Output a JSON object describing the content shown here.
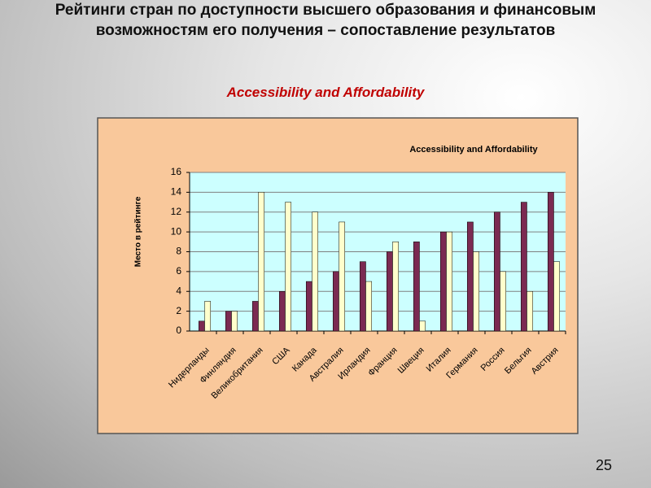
{
  "slide": {
    "title": "Рейтинги стран по доступности высшего образования и финансовым возможностям его получения – сопоставление результатов",
    "subtitle": "Accessibility and Affordability",
    "page_number": "25"
  },
  "chart_data": {
    "type": "bar",
    "title": "Accessibility and Affordability",
    "y_label": "Место в рейтинге",
    "categories": [
      "Нидерланды",
      "Финляндия",
      "Великобритания",
      "США",
      "Канада",
      "Австралия",
      "Ирландия",
      "Франция",
      "Швеция",
      "Италия",
      "Германия",
      "Россия",
      "Бельгия",
      "Австрия"
    ],
    "series": [
      {
        "color": "#7b2a52",
        "values": [
          1,
          2,
          3,
          4,
          5,
          6,
          7,
          8,
          9,
          10,
          11,
          12,
          13,
          14
        ]
      },
      {
        "color": "#ffffcc",
        "values": [
          3,
          2,
          14,
          13,
          12,
          11,
          5,
          9,
          1,
          10,
          8,
          6,
          4,
          7
        ]
      }
    ],
    "ylim": [
      0,
      16
    ],
    "yticks": [
      0,
      2,
      4,
      6,
      8,
      10,
      12,
      14,
      16
    ],
    "grid": true
  }
}
